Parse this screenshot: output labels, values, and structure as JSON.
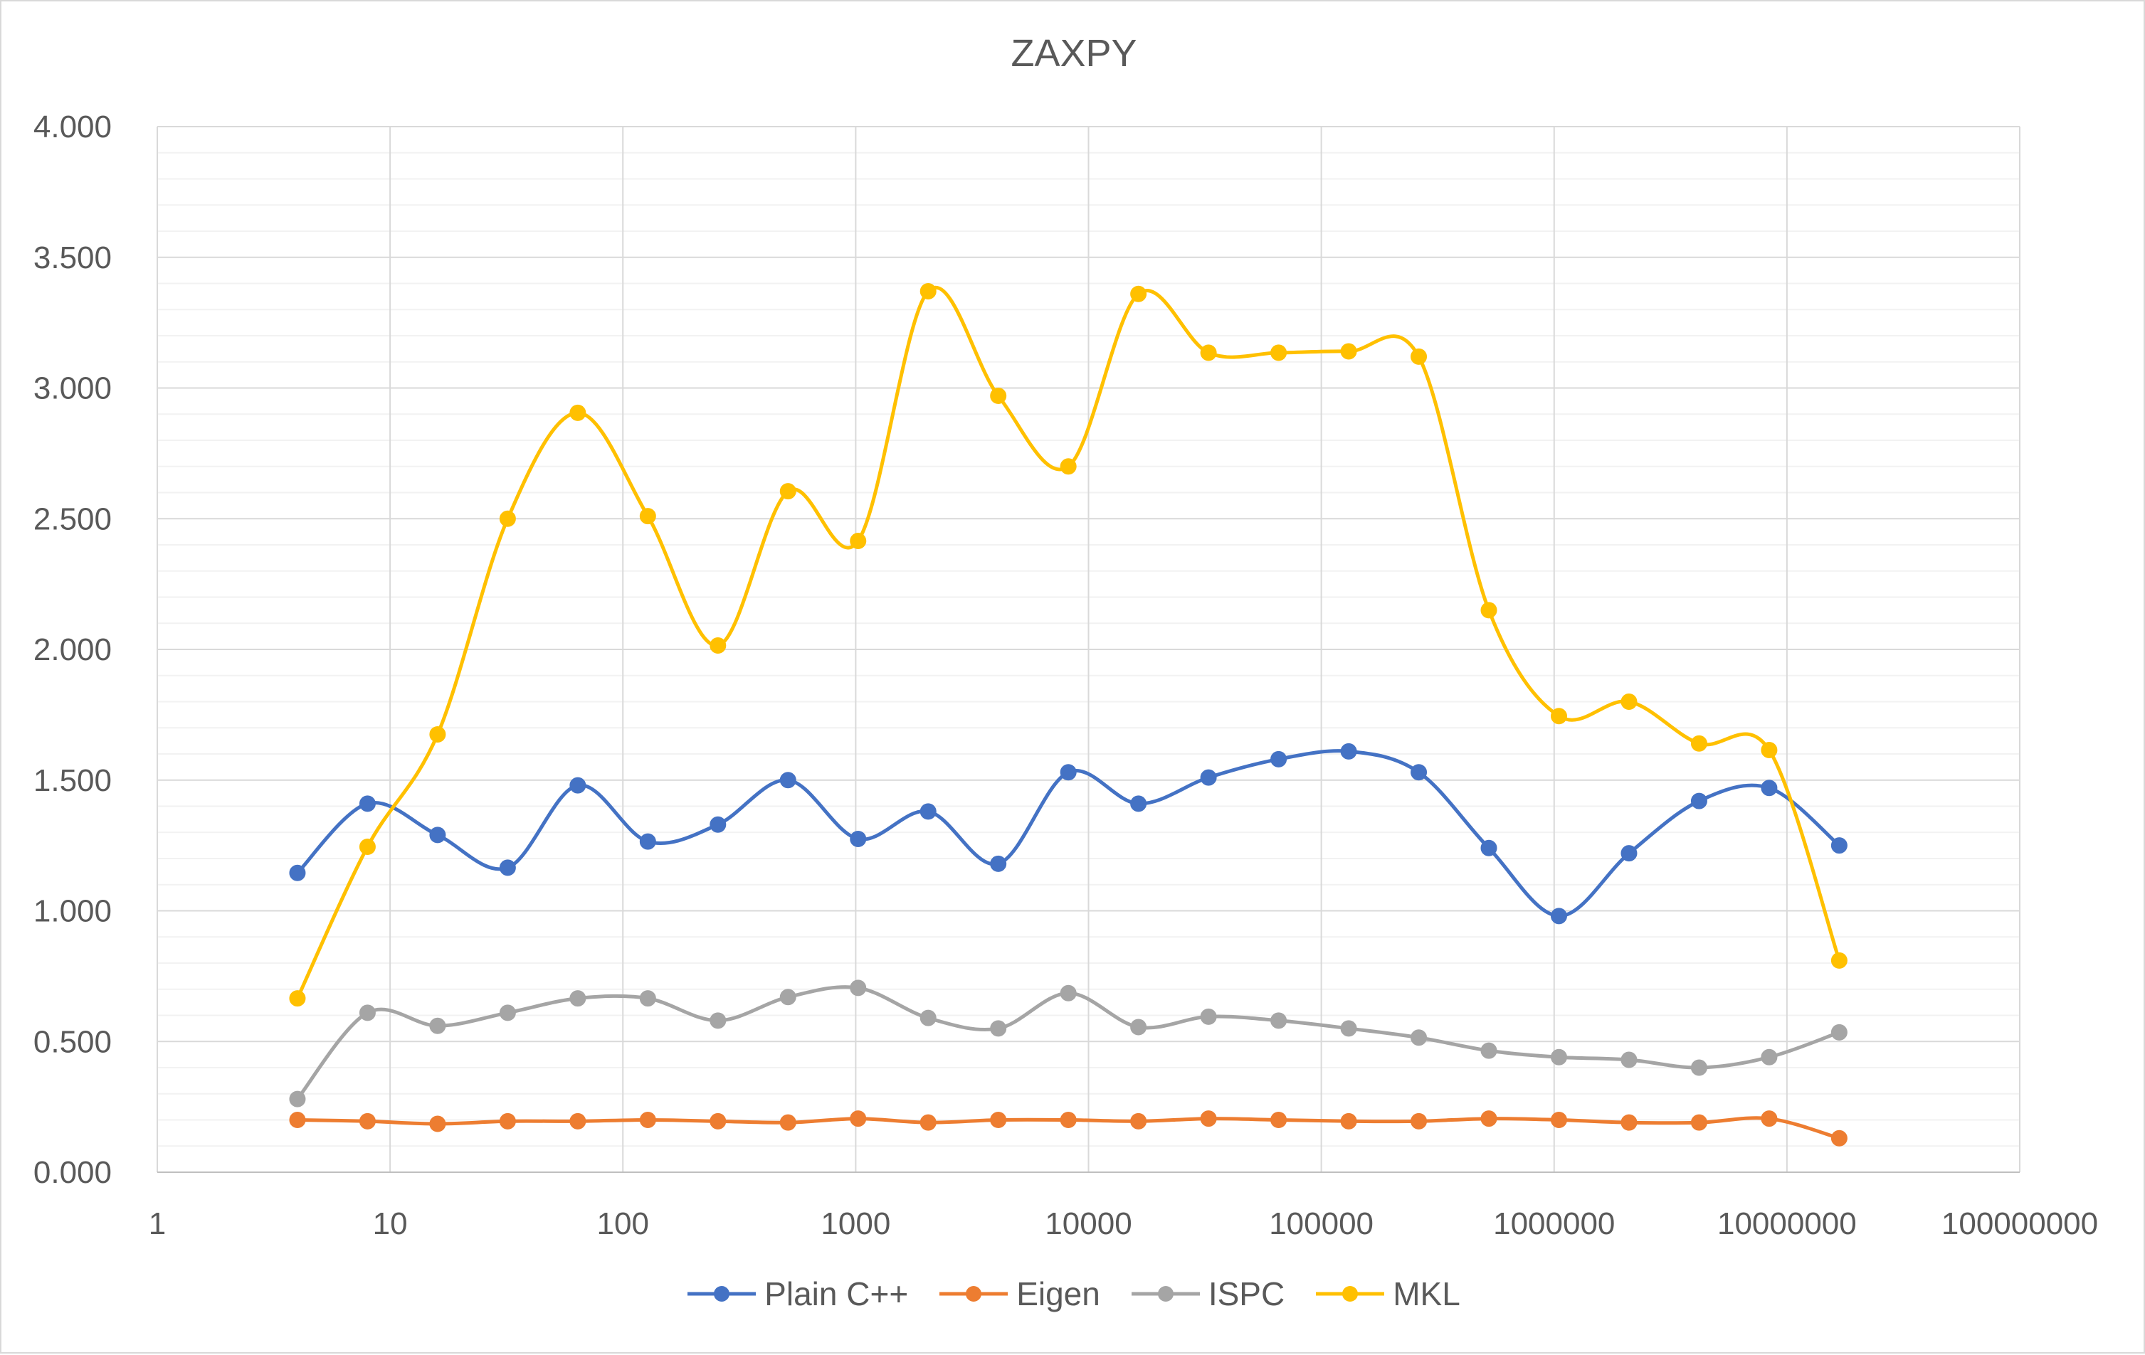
{
  "chart_data": {
    "type": "line",
    "title": "ZAXPY",
    "xlabel": "",
    "ylabel": "",
    "x_scale": "log",
    "xlim": [
      1,
      100000000
    ],
    "ylim": [
      0,
      4
    ],
    "x_tick_labels": [
      "1",
      "10",
      "100",
      "1000",
      "10000",
      "100000",
      "1000000",
      "10000000",
      "100000000"
    ],
    "y_tick_labels": [
      "0.000",
      "0.500",
      "1.000",
      "1.500",
      "2.000",
      "2.500",
      "3.000",
      "3.500",
      "4.000"
    ],
    "grid": true,
    "minor_grid": true,
    "legend_position": "bottom",
    "x": [
      4,
      8,
      16,
      32,
      64,
      128,
      256,
      512,
      1024,
      2048,
      4096,
      8192,
      16384,
      32768,
      65536,
      131072,
      262144,
      524288,
      1048576,
      2097152,
      4194304,
      8388608,
      16777216
    ],
    "series": [
      {
        "name": "Plain C++",
        "color": "#4472C4",
        "values": [
          1.145,
          1.41,
          1.29,
          1.165,
          1.48,
          1.265,
          1.33,
          1.5,
          1.275,
          1.38,
          1.18,
          1.53,
          1.41,
          1.51,
          1.58,
          1.61,
          1.53,
          1.24,
          0.98,
          1.22,
          1.42,
          1.47,
          1.25
        ]
      },
      {
        "name": "Eigen",
        "color": "#ED7D31",
        "values": [
          0.2,
          0.195,
          0.185,
          0.195,
          0.195,
          0.2,
          0.195,
          0.19,
          0.205,
          0.19,
          0.2,
          0.2,
          0.195,
          0.205,
          0.2,
          0.195,
          0.195,
          0.205,
          0.2,
          0.19,
          0.19,
          0.205,
          0.13
        ]
      },
      {
        "name": "ISPC",
        "color": "#A5A5A5",
        "values": [
          0.28,
          0.61,
          0.56,
          0.61,
          0.665,
          0.665,
          0.58,
          0.67,
          0.705,
          0.59,
          0.55,
          0.685,
          0.555,
          0.595,
          0.58,
          0.55,
          0.515,
          0.465,
          0.44,
          0.43,
          0.4,
          0.44,
          0.535
        ]
      },
      {
        "name": "MKL",
        "color": "#FFC000",
        "values": [
          0.665,
          1.245,
          1.675,
          2.5,
          2.905,
          2.51,
          2.015,
          2.605,
          2.415,
          3.37,
          2.97,
          2.7,
          3.36,
          3.135,
          3.135,
          3.14,
          3.12,
          2.15,
          1.745,
          1.8,
          1.64,
          1.615,
          0.81
        ]
      }
    ]
  }
}
